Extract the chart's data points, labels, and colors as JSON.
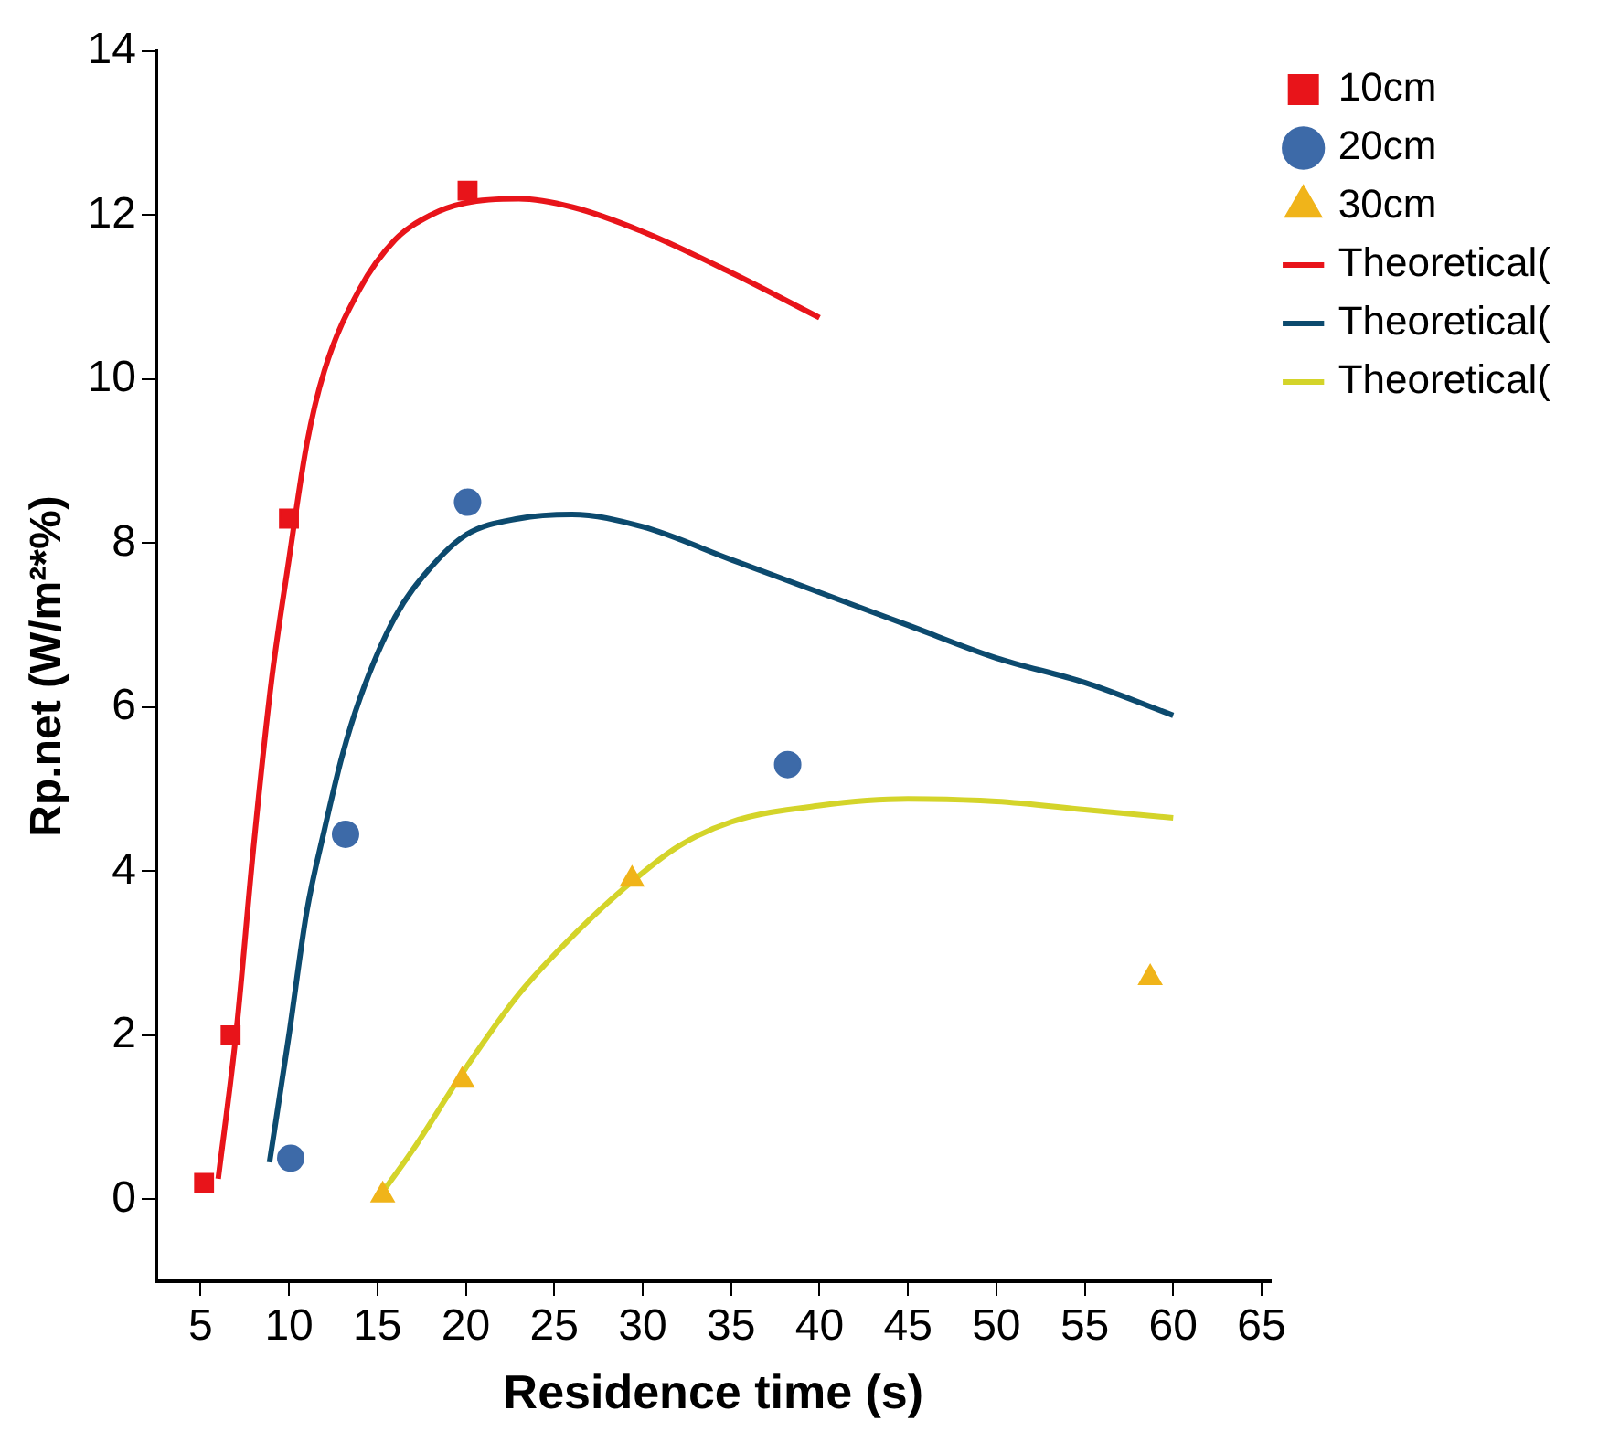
{
  "chart_data": {
    "type": "scatter",
    "xlabel": "Residence time (s)",
    "ylabel": "Rp.net (W/m²*%)",
    "xlim": [
      2.5,
      65.5
    ],
    "xticks": [
      5,
      10,
      15,
      20,
      25,
      30,
      35,
      40,
      45,
      50,
      55,
      60,
      65
    ],
    "ylim": [
      -1,
      14
    ],
    "yticks": [
      0,
      2,
      4,
      6,
      8,
      10,
      12,
      14
    ],
    "grid": false,
    "legend": "top right",
    "series": [
      {
        "name": "10cm",
        "marker": "square",
        "color": "#e8141a",
        "x": [
          5.2,
          6.7,
          10,
          20.1
        ],
        "values": [
          0.2,
          2.0,
          8.3,
          12.3
        ]
      },
      {
        "name": "20cm",
        "marker": "circle",
        "color": "#3d6aa8",
        "x": [
          10.1,
          13.2,
          20.1,
          38.2
        ],
        "values": [
          0.5,
          4.45,
          8.5,
          5.3
        ]
      },
      {
        "name": "30cm",
        "marker": "triangle",
        "color": "#f0b41a",
        "x": [
          15.3,
          19.8,
          29.4,
          58.7
        ],
        "values": [
          0.05,
          1.45,
          3.9,
          2.7
        ]
      },
      {
        "name": "Theoretical(",
        "type": "line",
        "marker": "none",
        "color": "#e8141a",
        "x": [
          6,
          7,
          8,
          9,
          10,
          11,
          12,
          14,
          16,
          18,
          20,
          23,
          26,
          30,
          35,
          40
        ],
        "values": [
          0.25,
          2,
          4.3,
          6.3,
          7.8,
          9.2,
          10.1,
          11.1,
          11.7,
          12.0,
          12.15,
          12.2,
          12.1,
          11.8,
          11.3,
          10.75
        ]
      },
      {
        "name": "Theoretical(",
        "type": "line",
        "marker": "none",
        "color": "#0c4a6e",
        "x": [
          8.9,
          10,
          11,
          12,
          13,
          14,
          16,
          18,
          20,
          23,
          26,
          30,
          35,
          40,
          45,
          50,
          55,
          60
        ],
        "values": [
          0.45,
          2,
          3.5,
          4.5,
          5.4,
          6.1,
          7.1,
          7.7,
          8.1,
          8.3,
          8.35,
          8.2,
          7.8,
          7.4,
          7.0,
          6.6,
          6.3,
          5.9
        ]
      },
      {
        "name": "Theoretical(",
        "type": "line",
        "marker": "none",
        "color": "#d4d42a",
        "x": [
          15,
          17,
          20,
          23,
          26,
          29,
          32,
          35,
          40,
          45,
          50,
          55,
          60
        ],
        "values": [
          0,
          0.6,
          1.6,
          2.5,
          3.2,
          3.8,
          4.3,
          4.6,
          4.8,
          4.88,
          4.85,
          4.75,
          4.65
        ]
      }
    ]
  }
}
